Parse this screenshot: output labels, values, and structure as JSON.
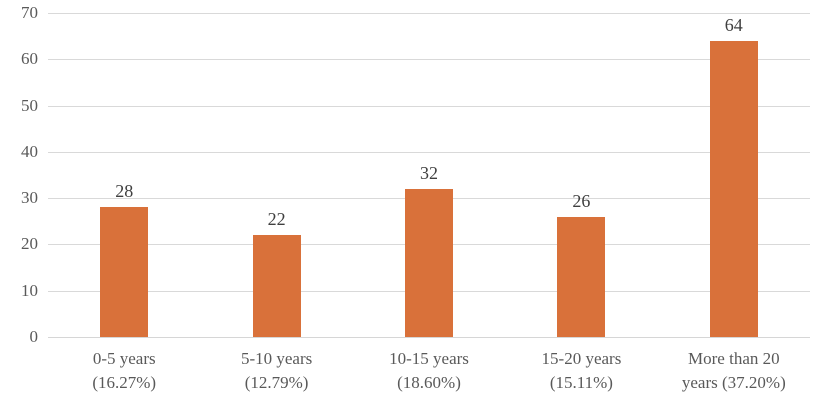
{
  "chart_data": {
    "type": "bar",
    "title": "",
    "xlabel": "",
    "ylabel": "",
    "categories": [
      "0-5 years\n(16.27%)",
      "5-10 years\n(12.79%)",
      "10-15 years\n(18.60%)",
      "15-20 years\n(15.11%)",
      "More than 20\nyears (37.20%)"
    ],
    "values": [
      28,
      22,
      32,
      26,
      64
    ],
    "value_labels": [
      "28",
      "22",
      "32",
      "26",
      "64"
    ],
    "ylim": [
      0,
      70
    ],
    "yticks": [
      0,
      10,
      20,
      30,
      40,
      50,
      60,
      70
    ],
    "grid": true,
    "legend_position": "none",
    "colors": {
      "bar": "#D9713A",
      "gridline": "#D9D9D9",
      "axis_line": "#D6D6D6",
      "axis_text": "#595959",
      "data_label": "#3F3F3F"
    }
  }
}
